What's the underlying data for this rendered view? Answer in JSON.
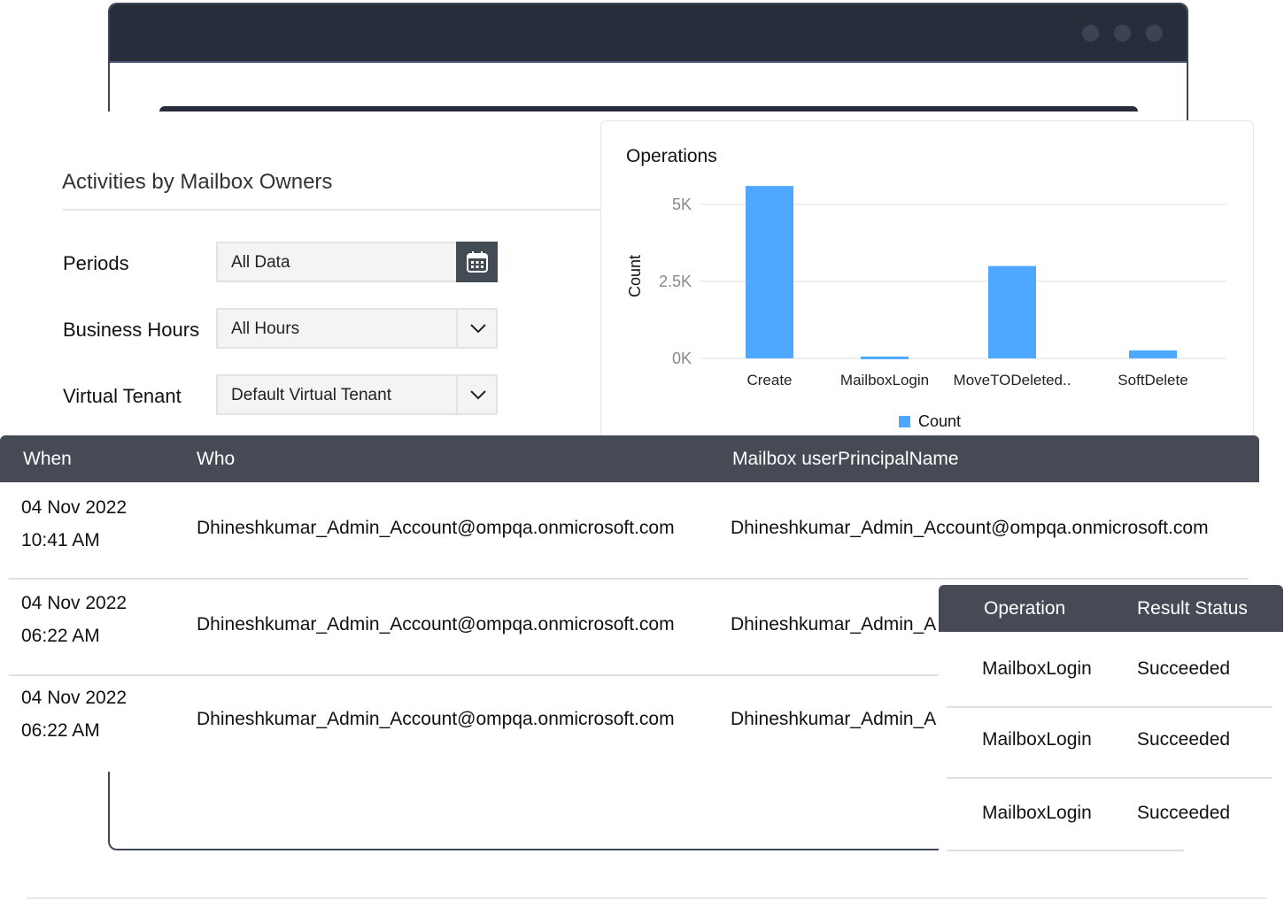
{
  "report": {
    "title": "Activities by Mailbox Owners",
    "filters": [
      {
        "label": "Periods",
        "value": "All Data",
        "icon": "calendar-icon"
      },
      {
        "label": "Business Hours",
        "value": "All Hours",
        "icon": "chevron-down-icon"
      },
      {
        "label": "Virtual Tenant",
        "value": "Default Virtual Tenant",
        "icon": "chevron-down-icon"
      }
    ]
  },
  "chart_data": {
    "type": "bar",
    "title": "Operations",
    "ylabel": "Count",
    "xlabel": "",
    "categories": [
      "Create",
      "MailboxLogin",
      "MoveTODeleted..",
      "SoftDelete"
    ],
    "series": [
      {
        "name": "Count",
        "values": [
          5600,
          60,
          3000,
          260
        ]
      }
    ],
    "ylim": [
      0,
      5600
    ],
    "yticks": [
      {
        "v": 0,
        "label": "0K"
      },
      {
        "v": 2500,
        "label": "2.5K"
      },
      {
        "v": 5000,
        "label": "5K"
      }
    ],
    "grid": true,
    "legend": "bottom",
    "color": "#4fa8ff"
  },
  "table": {
    "headers": [
      "When",
      "Who",
      "Mailbox userPrincipalName"
    ],
    "rows": [
      {
        "date": "04 Nov 2022",
        "time": "10:41 AM",
        "who": "Dhineshkumar_Admin_Account@ompqa.onmicrosoft.com",
        "upn": "Dhineshkumar_Admin_Account@ompqa.onmicrosoft.com"
      },
      {
        "date": "04 Nov 2022",
        "time": "06:22 AM",
        "who": "Dhineshkumar_Admin_Account@ompqa.onmicrosoft.com",
        "upn": "Dhineshkumar_Admin_A"
      },
      {
        "date": "04 Nov 2022",
        "time": "06:22 AM",
        "who": "Dhineshkumar_Admin_Account@ompqa.onmicrosoft.com",
        "upn": "Dhineshkumar_Admin_A"
      }
    ]
  },
  "popup": {
    "headers": [
      "Operation",
      "Result Status"
    ],
    "rows": [
      [
        "MailboxLogin",
        "Succeeded"
      ],
      [
        "MailboxLogin",
        "Succeeded"
      ],
      [
        "MailboxLogin",
        "Succeeded"
      ]
    ]
  }
}
